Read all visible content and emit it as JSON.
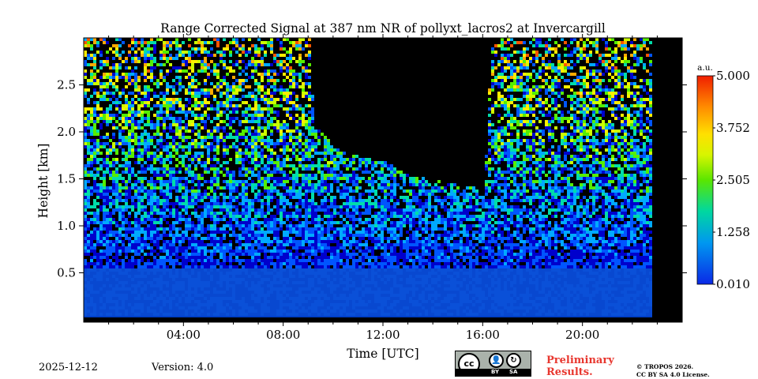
{
  "chart_data": {
    "type": "heatmap",
    "title": "Range Corrected Signal at 387 nm NR of pollyxt_lacros2 at Invercargill",
    "xlabel": "Time [UTC]",
    "ylabel": "Height [km]",
    "xlim_hours": [
      0,
      24
    ],
    "ylim_km": [
      0,
      3
    ],
    "x_ticks": [
      {
        "value": 4,
        "label": "04:00"
      },
      {
        "value": 8,
        "label": "08:00"
      },
      {
        "value": 12,
        "label": "12:00"
      },
      {
        "value": 16,
        "label": "16:00"
      },
      {
        "value": 20,
        "label": "20:00"
      }
    ],
    "y_ticks": [
      {
        "value": 0.5,
        "label": "0.5"
      },
      {
        "value": 1.0,
        "label": "1.0"
      },
      {
        "value": 1.5,
        "label": "1.5"
      },
      {
        "value": 2.0,
        "label": "2.0"
      },
      {
        "value": 2.5,
        "label": "2.5"
      }
    ],
    "colorbar": {
      "unit": "a.u.",
      "min": 0.01,
      "max": 5.0,
      "tick_labels": [
        "5.000",
        "3.752",
        "2.505",
        "1.258",
        "0.010"
      ],
      "colormap": [
        "#0000cc",
        "#0055ff",
        "#00aaff",
        "#00ddaa",
        "#55ee00",
        "#ccff00",
        "#ffee00",
        "#ffaa00",
        "#ff5500",
        "#ee0000"
      ]
    },
    "data_end_hour": 22.9,
    "signal_top_km": [
      {
        "h": 0.0,
        "top": 3.0
      },
      {
        "h": 9.0,
        "top": 3.0
      },
      {
        "h": 9.2,
        "top": 2.1
      },
      {
        "h": 10.0,
        "top": 1.85
      },
      {
        "h": 11.0,
        "top": 1.75
      },
      {
        "h": 12.0,
        "top": 1.7
      },
      {
        "h": 13.0,
        "top": 1.55
      },
      {
        "h": 14.0,
        "top": 1.5
      },
      {
        "h": 15.0,
        "top": 1.45
      },
      {
        "h": 16.0,
        "top": 1.4
      },
      {
        "h": 16.3,
        "top": 3.0
      },
      {
        "h": 22.9,
        "top": 3.0
      }
    ]
  },
  "footer": {
    "date": "2025-12-12",
    "version": "Version: 4.0",
    "preliminary_line1": "Preliminary",
    "preliminary_line2": "Results.",
    "copyright_line1": "© TROPOS 2026.",
    "copyright_line2": "CC BY SA 4.0 License.",
    "license_badge": {
      "cc": "cc",
      "by": "BY",
      "sa": "SA"
    }
  }
}
